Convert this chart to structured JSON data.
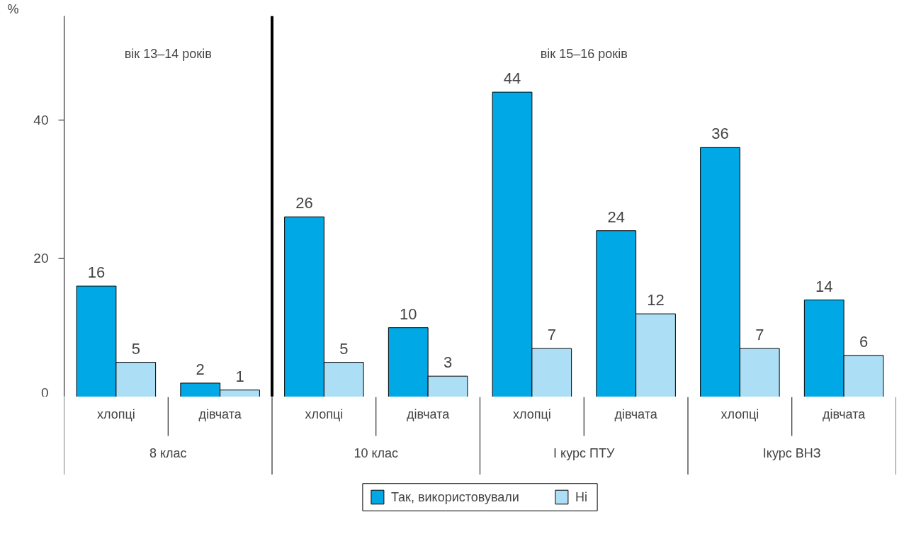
{
  "chart_data": {
    "type": "bar",
    "ylabel": "%",
    "categories": [
      "хлопці",
      "дівчата",
      "хлопці",
      "дівчата",
      "хлопці",
      "дівчата",
      "хлопці",
      "дівчата"
    ],
    "series": [
      {
        "name": "Так, використовували",
        "color": "#00a9e6",
        "values": [
          16,
          2,
          26,
          10,
          44,
          24,
          36,
          14
        ]
      },
      {
        "name": "Ні",
        "color": "#acdff5",
        "values": [
          5,
          1,
          5,
          3,
          7,
          12,
          7,
          6
        ]
      }
    ],
    "annotations": [
      "вік 13–14 років",
      "вік 15–16 років",
      "8 клас",
      "10 клас",
      "І курс ПТУ",
      "Ікурс ВНЗ"
    ],
    "ylim": [
      0,
      55
    ],
    "yticks": [
      0,
      20,
      40
    ],
    "grid": false,
    "legend": "bottom",
    "data_labels": true
  }
}
